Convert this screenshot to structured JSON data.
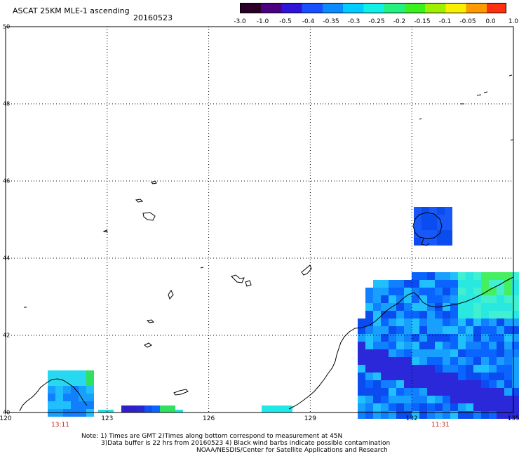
{
  "header": {
    "title": "ASCAT 25KM MLE-1 ascending",
    "date": "20160523"
  },
  "colorbar": {
    "tick_labels": [
      "-3.0",
      "-1.0",
      "-0.5",
      "-0.4",
      "-0.35",
      "-0.3",
      "-0.25",
      "-0.2",
      "-0.15",
      "-0.1",
      "-0.05",
      "0.0",
      "1.0"
    ],
    "colors": [
      "#2a0028",
      "#4a0080",
      "#2d14d8",
      "#1850ff",
      "#0a8cff",
      "#00ccff",
      "#10f0e6",
      "#26f080",
      "#3cf020",
      "#9ef000",
      "#f8f000",
      "#ff9a00",
      "#ff3010"
    ]
  },
  "map": {
    "lat_labels": [
      "50",
      "48",
      "46",
      "44",
      "42",
      "40"
    ],
    "lon_labels": [
      "120",
      "123",
      "126",
      "129",
      "132",
      "135"
    ],
    "time_labels": [
      "13:11",
      "11:31"
    ],
    "lon_range": [
      120,
      135
    ],
    "lat_range": [
      40,
      50
    ]
  },
  "notes": [
    "Note: 1) Times are GMT 2)Times along bottom correspond to measurement at 45N",
    "3)Data buffer is 22 hrs from 20160523 4) Black wind barbs indicate possible contamination",
    "NOAA/NESDIS/Center for Satellite Applications and Research"
  ]
}
